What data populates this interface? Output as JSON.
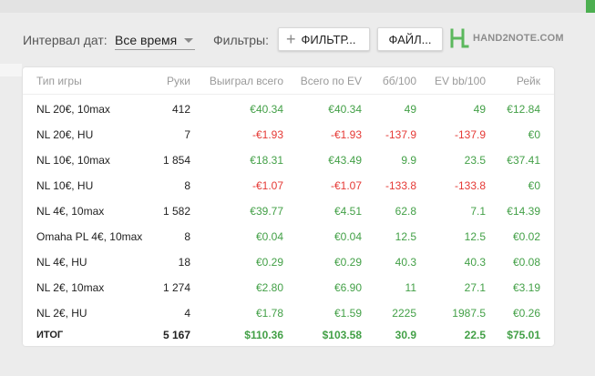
{
  "toolbar": {
    "date_interval_label": "Интервал дат:",
    "date_interval_value": "Все время",
    "filters_label": "Фильтры:",
    "filter_button_label": "ФИЛЬТР...",
    "file_button_label": "ФАЙЛ...",
    "logo_text": "HAND2NOTE.COM"
  },
  "colors": {
    "positive": "#43a047",
    "negative": "#e53935",
    "accent": "#4caf50"
  },
  "table": {
    "headers": [
      "Тип игры",
      "Руки",
      "Выиграл всего",
      "Всего по EV",
      "бб/100",
      "EV bb/100",
      "Рейк"
    ],
    "rows": [
      {
        "cells": [
          "NL 20€, 10max",
          "412",
          "€40.34",
          "€40.34",
          "49",
          "49",
          "€12.84"
        ],
        "signs": [
          "",
          "",
          "pos",
          "pos",
          "pos",
          "pos",
          "pos"
        ]
      },
      {
        "cells": [
          "NL 20€, HU",
          "7",
          "-€1.93",
          "-€1.93",
          "-137.9",
          "-137.9",
          "€0"
        ],
        "signs": [
          "",
          "",
          "neg",
          "neg",
          "neg",
          "neg",
          "pos"
        ]
      },
      {
        "cells": [
          "NL 10€, 10max",
          "1 854",
          "€18.31",
          "€43.49",
          "9.9",
          "23.5",
          "€37.41"
        ],
        "signs": [
          "",
          "",
          "pos",
          "pos",
          "pos",
          "pos",
          "pos"
        ]
      },
      {
        "cells": [
          "NL 10€, HU",
          "8",
          "-€1.07",
          "-€1.07",
          "-133.8",
          "-133.8",
          "€0"
        ],
        "signs": [
          "",
          "",
          "neg",
          "neg",
          "neg",
          "neg",
          "pos"
        ]
      },
      {
        "cells": [
          "NL 4€, 10max",
          "1 582",
          "€39.77",
          "€4.51",
          "62.8",
          "7.1",
          "€14.39"
        ],
        "signs": [
          "",
          "",
          "pos",
          "pos",
          "pos",
          "pos",
          "pos"
        ]
      },
      {
        "cells": [
          "Omaha PL 4€, 10max",
          "8",
          "€0.04",
          "€0.04",
          "12.5",
          "12.5",
          "€0.02"
        ],
        "signs": [
          "",
          "",
          "pos",
          "pos",
          "pos",
          "pos",
          "pos"
        ]
      },
      {
        "cells": [
          "NL 4€, HU",
          "18",
          "€0.29",
          "€0.29",
          "40.3",
          "40.3",
          "€0.08"
        ],
        "signs": [
          "",
          "",
          "pos",
          "pos",
          "pos",
          "pos",
          "pos"
        ]
      },
      {
        "cells": [
          "NL 2€, 10max",
          "1 274",
          "€2.80",
          "€6.90",
          "11",
          "27.1",
          "€3.19"
        ],
        "signs": [
          "",
          "",
          "pos",
          "pos",
          "pos",
          "pos",
          "pos"
        ]
      },
      {
        "cells": [
          "NL 2€, HU",
          "4",
          "€1.78",
          "€1.59",
          "2225",
          "1987.5",
          "€0.26"
        ],
        "signs": [
          "",
          "",
          "pos",
          "pos",
          "pos",
          "pos",
          "pos"
        ]
      }
    ],
    "total": {
      "cells": [
        "ИТОГ",
        "5 167",
        "$110.36",
        "$103.58",
        "30.9",
        "22.5",
        "$75.01"
      ],
      "signs": [
        "",
        "",
        "pos",
        "pos",
        "pos",
        "pos",
        "pos"
      ]
    }
  }
}
